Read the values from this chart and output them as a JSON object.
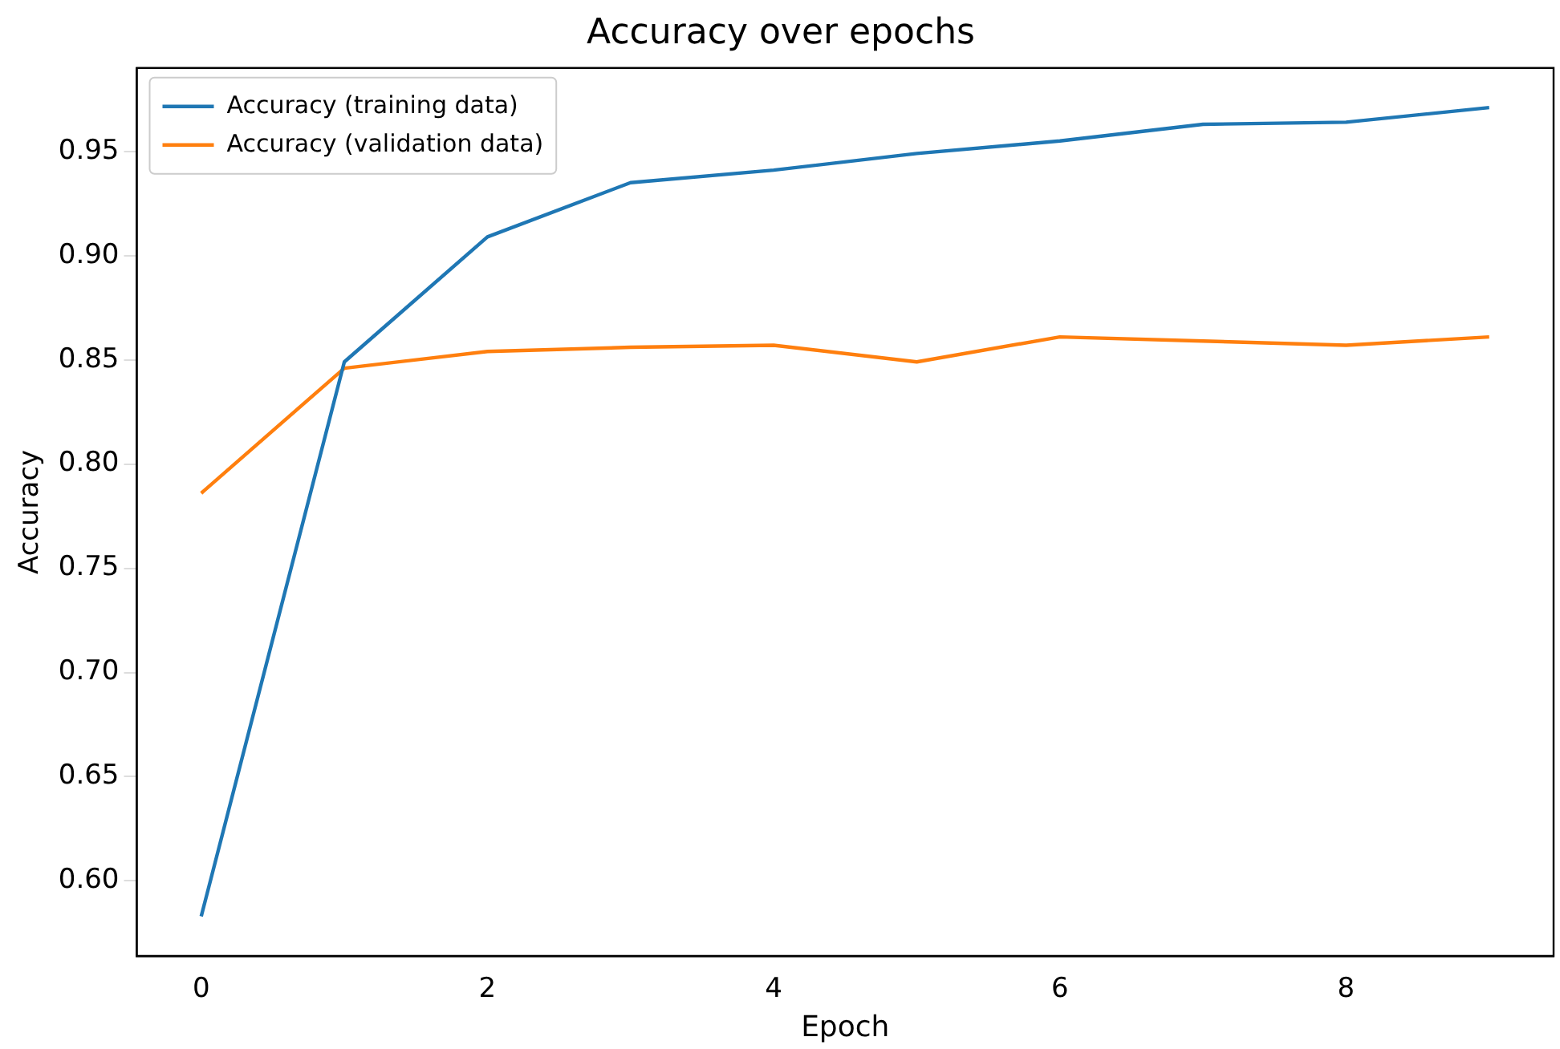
{
  "chart_data": {
    "type": "line",
    "title": "Accuracy over epochs",
    "xlabel": "Epoch",
    "ylabel": "Accuracy",
    "x": [
      0,
      1,
      2,
      3,
      4,
      5,
      6,
      7,
      8,
      9
    ],
    "series": [
      {
        "name": "Accuracy (training data)",
        "color": "#1f77b4",
        "values": [
          0.583,
          0.849,
          0.909,
          0.935,
          0.941,
          0.949,
          0.955,
          0.963,
          0.964,
          0.971
        ]
      },
      {
        "name": "Accuracy (validation data)",
        "color": "#ff7f0e",
        "values": [
          0.786,
          0.846,
          0.854,
          0.856,
          0.857,
          0.849,
          0.861,
          0.859,
          0.857,
          0.861
        ]
      }
    ],
    "xlim": [
      -0.45,
      9.45
    ],
    "xticks": [
      0,
      2,
      4,
      6,
      8
    ],
    "ylim": [
      0.564,
      0.99
    ],
    "yticks": [
      {
        "value": 0.6,
        "label": "0.60"
      },
      {
        "value": 0.65,
        "label": "0.65"
      },
      {
        "value": 0.7,
        "label": "0.70"
      },
      {
        "value": 0.75,
        "label": "0.75"
      },
      {
        "value": 0.8,
        "label": "0.80"
      },
      {
        "value": 0.85,
        "label": "0.85"
      },
      {
        "value": 0.9,
        "label": "0.90"
      },
      {
        "value": 0.95,
        "label": "0.95"
      }
    ],
    "grid": false,
    "legend": "top left",
    "marker": "none",
    "line_style": "solid"
  }
}
